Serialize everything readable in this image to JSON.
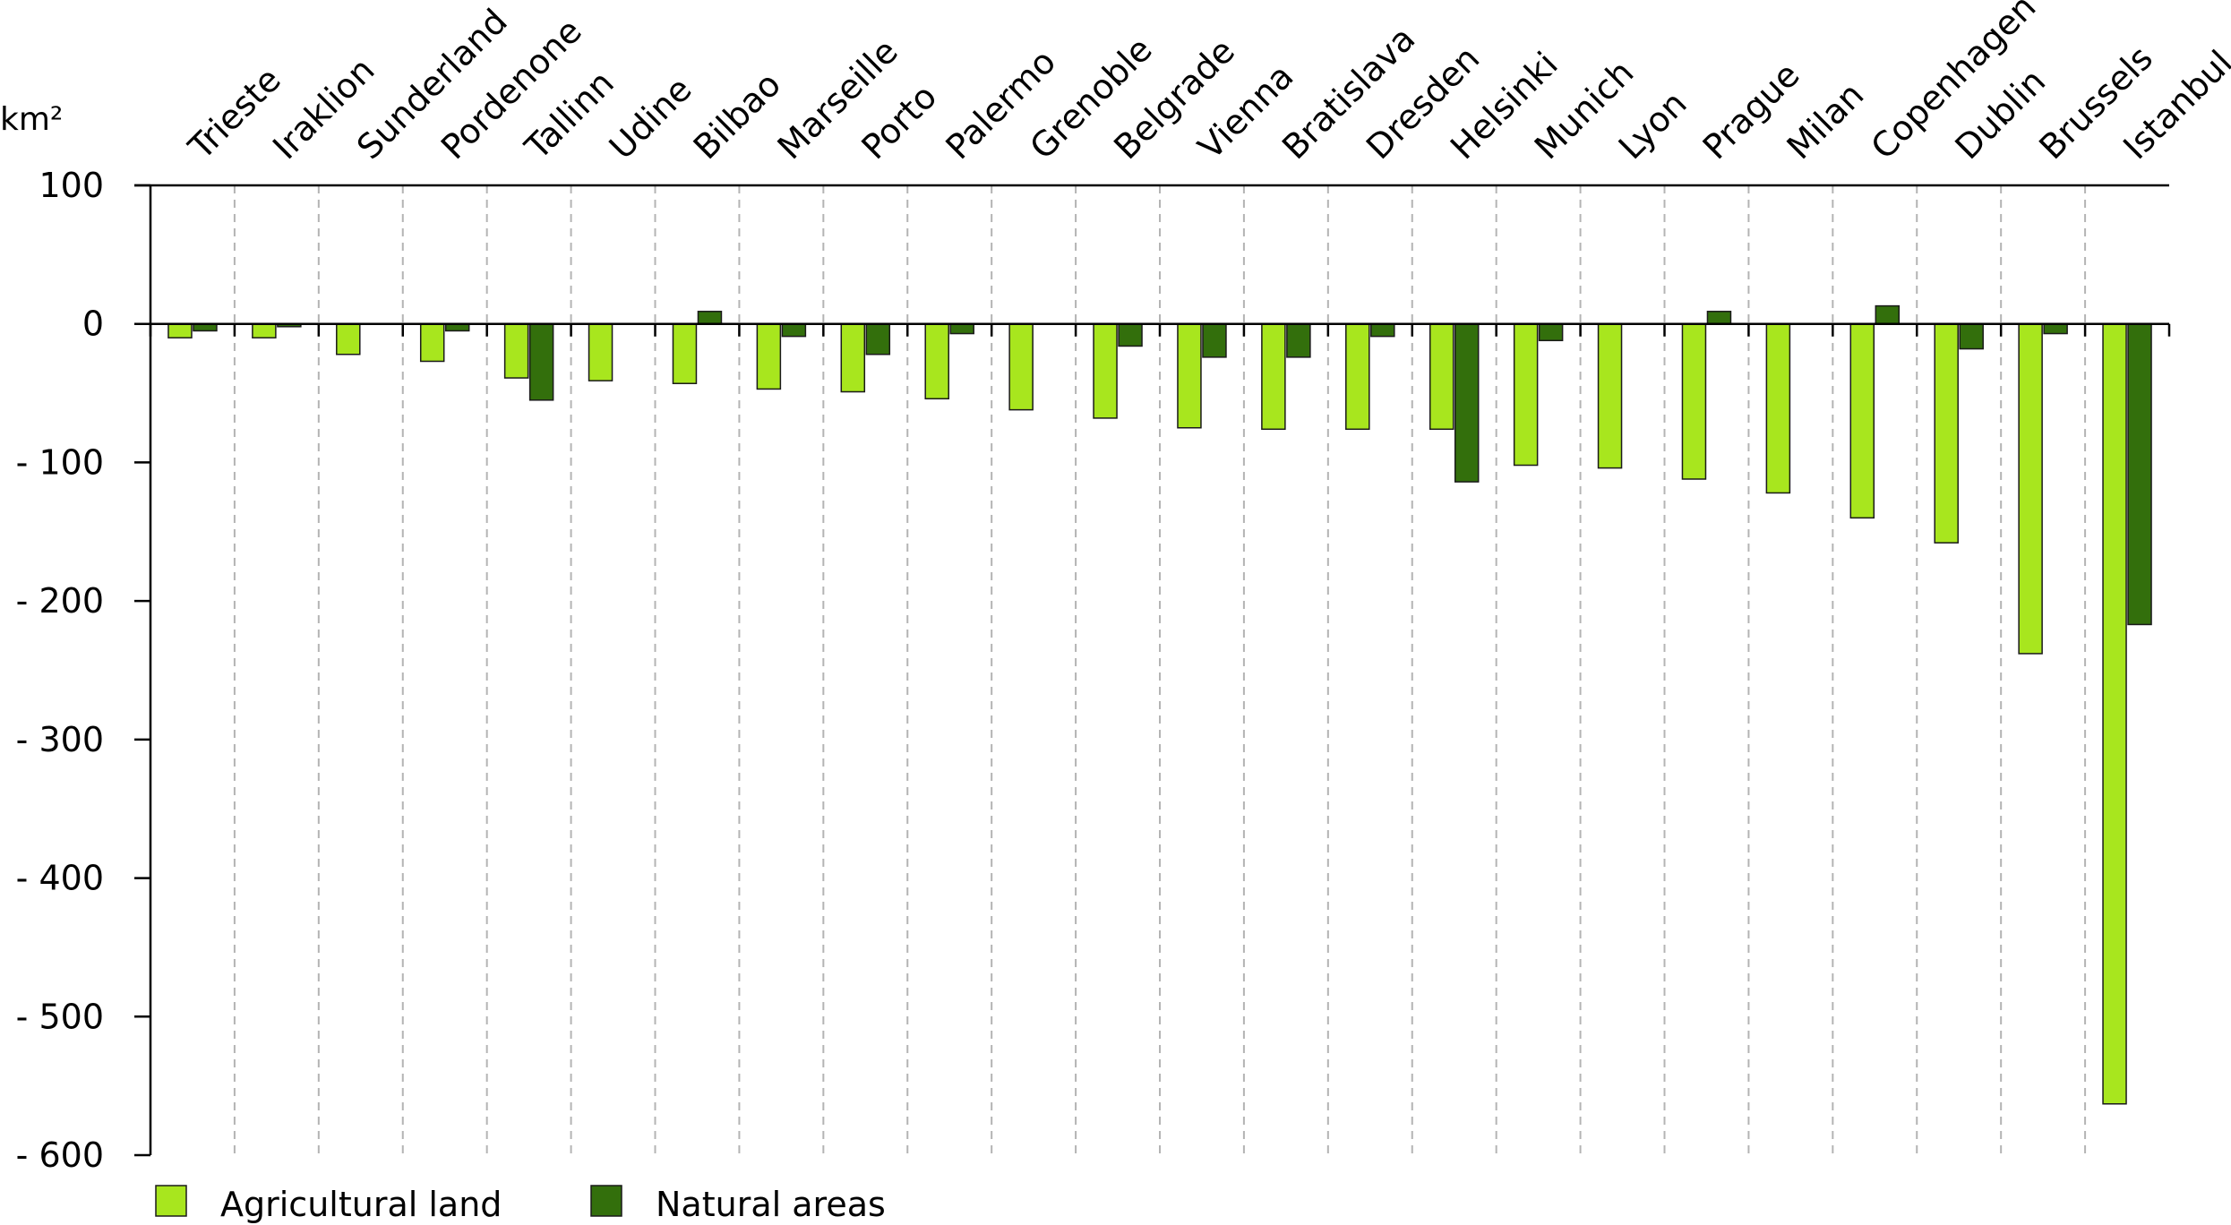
{
  "chart_data": {
    "type": "bar",
    "unit_label": "km²",
    "categories": [
      "Trieste",
      "Iraklion",
      "Sunderland",
      "Pordenone",
      "Tallinn",
      "Udine",
      "Bilbao",
      "Marseille",
      "Porto",
      "Palermo",
      "Grenoble",
      "Belgrade",
      "Vienna",
      "Bratislava",
      "Dresden",
      "Helsinki",
      "Munich",
      "Lyon",
      "Prague",
      "Milan",
      "Copenhagen",
      "Dublin",
      "Brussels",
      "Istanbul"
    ],
    "series": [
      {
        "name": "Agricultural land",
        "color": "#a8e61e",
        "values": [
          -10,
          -10,
          -22,
          -27,
          -39,
          -41,
          -43,
          -47,
          -49,
          -54,
          -62,
          -68,
          -75,
          -76,
          -76,
          -76,
          -102,
          -104,
          -112,
          -122,
          -140,
          -158,
          -238,
          -563
        ]
      },
      {
        "name": "Natural areas",
        "color": "#336f0c",
        "values": [
          -5,
          -2,
          0,
          -5,
          -55,
          0,
          9,
          -9,
          -22,
          -7,
          0,
          -16,
          -24,
          -24,
          -9,
          -114,
          -12,
          0,
          9,
          0,
          13,
          -18,
          -7,
          -217
        ]
      }
    ],
    "ylim": [
      -600,
      100
    ],
    "yticks": [
      100,
      0,
      -100,
      -200,
      -300,
      -400,
      -500,
      -600
    ],
    "ytick_labels": [
      "100",
      "0",
      "- 100",
      "- 200",
      "- 300",
      "- 400",
      "- 500",
      "- 600"
    ],
    "grid": "vertical dashed separators",
    "legend": "bottom-left"
  }
}
